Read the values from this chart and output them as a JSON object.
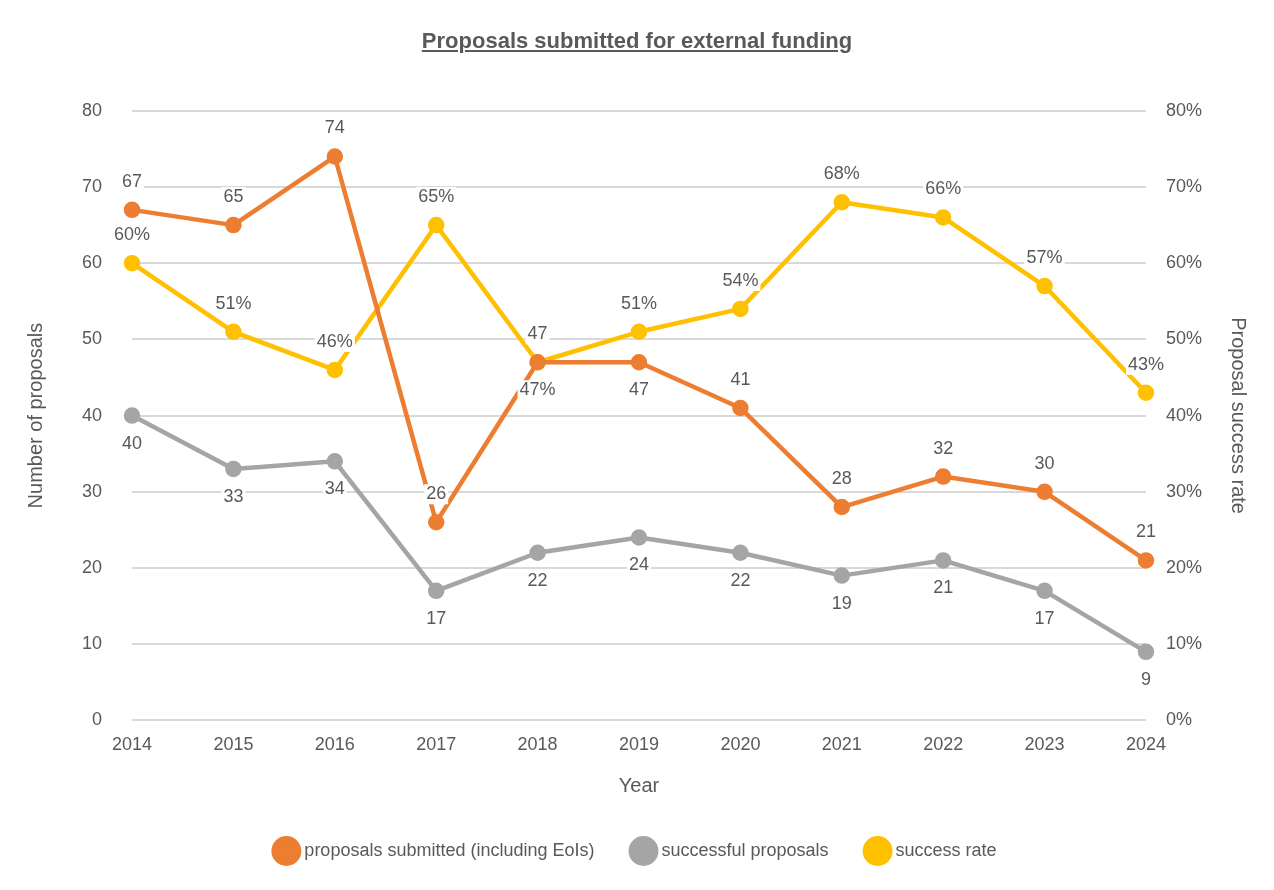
{
  "chart_data": {
    "type": "line",
    "title": "Proposals submitted for external funding",
    "xlabel": "Year",
    "ylabel": "Number of proposals",
    "y2label": "Proposal success rate",
    "categories": [
      "2014",
      "2015",
      "2016",
      "2017",
      "2018",
      "2019",
      "2020",
      "2021",
      "2022",
      "2023",
      "2024"
    ],
    "series": [
      {
        "name": "proposals submitted (including EoIs)",
        "color": "#ed7d31",
        "values": [
          67,
          65,
          74,
          26,
          47,
          47,
          41,
          28,
          32,
          30,
          21
        ],
        "value_labels": [
          "67",
          "65",
          "74",
          "26",
          "47",
          "47",
          "41",
          "28",
          "32",
          "30",
          "21"
        ]
      },
      {
        "name": "successful proposals",
        "color": "#a5a5a5",
        "values": [
          40,
          33,
          34,
          17,
          22,
          24,
          22,
          19,
          21,
          17,
          9
        ],
        "value_labels": [
          "40",
          "33",
          "34",
          "17",
          "22",
          "24",
          "22",
          "19",
          "21",
          "17",
          "9"
        ]
      },
      {
        "name": "success rate",
        "color": "#ffc000",
        "axis": "y2",
        "values": [
          60,
          51,
          46,
          65,
          47,
          51,
          54,
          68,
          66,
          57,
          43
        ],
        "value_labels": [
          "60%",
          "51%",
          "46%",
          "65%",
          "47%",
          "51%",
          "54%",
          "68%",
          "66%",
          "57%",
          "43%"
        ]
      }
    ],
    "ylim": [
      0,
      80
    ],
    "yticks": [
      0,
      10,
      20,
      30,
      40,
      50,
      60,
      70,
      80
    ],
    "y2lim": [
      0,
      80
    ],
    "y2ticks": [
      {
        "value": 0,
        "label": "0%"
      },
      {
        "value": 10,
        "label": "10%"
      },
      {
        "value": 20,
        "label": "20%"
      },
      {
        "value": 30,
        "label": "30%"
      },
      {
        "value": 40,
        "label": "40%"
      },
      {
        "value": 50,
        "label": "50%"
      },
      {
        "value": 60,
        "label": "60%"
      },
      {
        "value": 70,
        "label": "70%"
      },
      {
        "value": 80,
        "label": "80%"
      }
    ],
    "grid": "y",
    "legend": "bottom",
    "marker": "circle",
    "line_style": "solid"
  }
}
